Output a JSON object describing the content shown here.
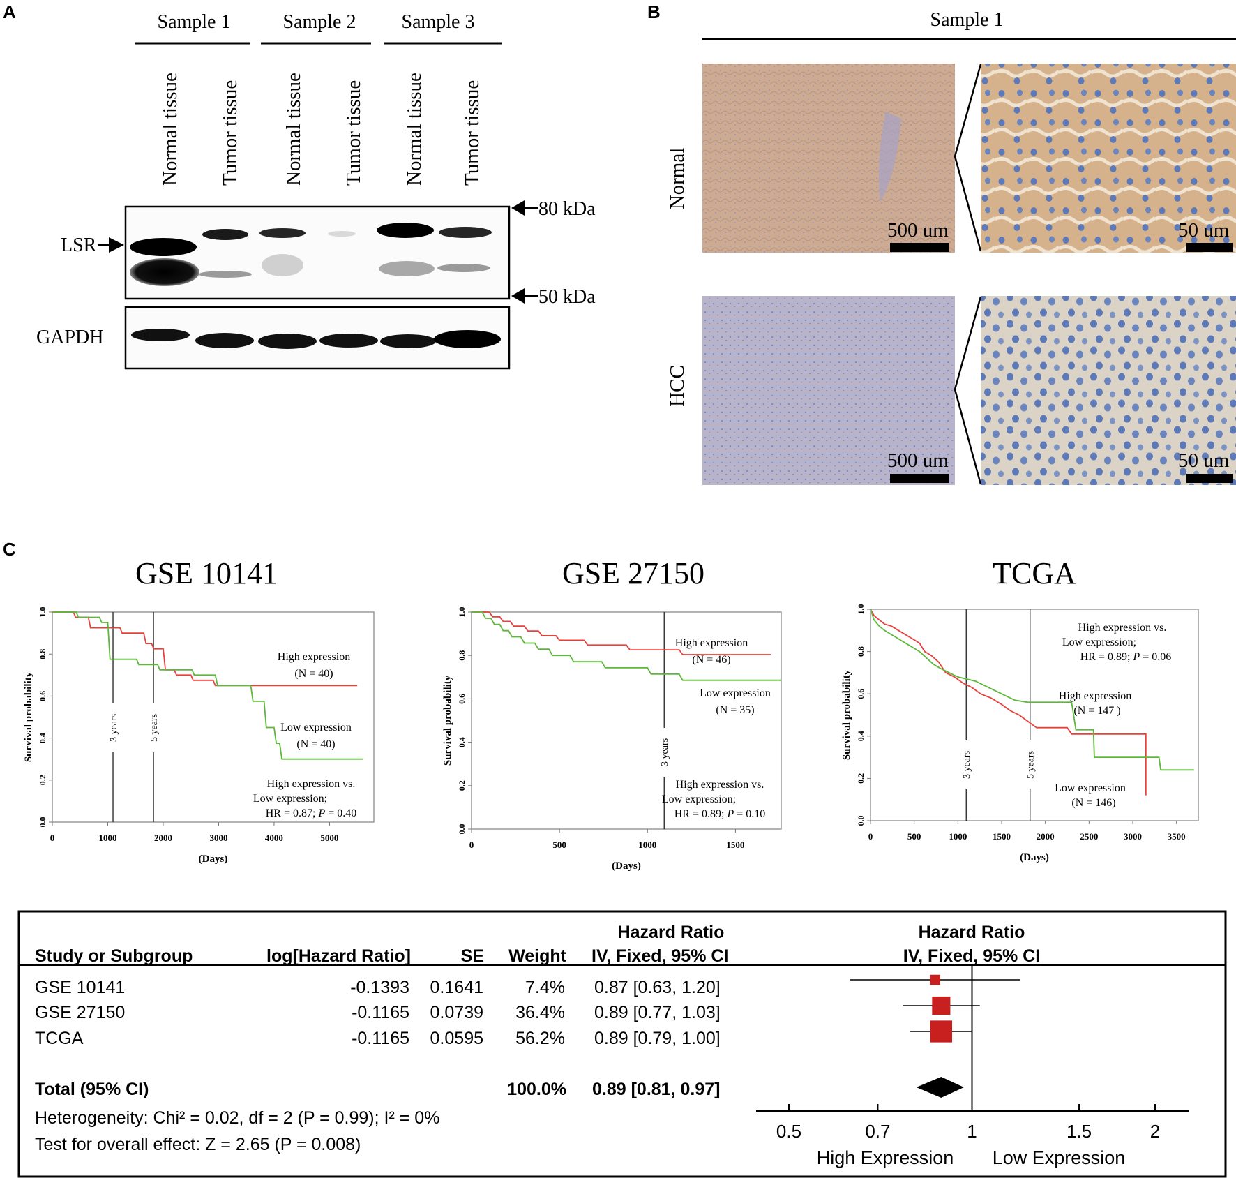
{
  "panel_labels": {
    "a": "A",
    "b": "B",
    "c": "C"
  },
  "panel_a": {
    "samples": [
      "Sample 1",
      "Sample 2",
      "Sample 3"
    ],
    "lanes": [
      "Normal tissue",
      "Tumor tissue",
      "Normal tissue",
      "Tumor tissue",
      "Normal tissue",
      "Tumor tissue"
    ],
    "row_labels": {
      "lsr": "LSR",
      "gapdh": "GAPDH"
    },
    "markers": {
      "upper": "80 kDa",
      "lower": "50 kDa"
    }
  },
  "panel_b": {
    "sample": "Sample 1",
    "rows": [
      "Normal",
      "HCC"
    ],
    "scalebars": {
      "low": "500 um",
      "high": "50 um"
    },
    "colors": {
      "normal_stain": "#cdab93",
      "normal_high": "#d7b48a",
      "hcc_stain": "#b6b3cd",
      "hcc_high": "#d9d3c6",
      "nuclei": "#5d79b8"
    }
  },
  "panel_c_common": {
    "ylabel": "Survival probability",
    "xlabel": "(Days)",
    "colors": {
      "high": "#e8413c",
      "low": "#5db83a"
    }
  },
  "chart_data": [
    {
      "type": "line",
      "title": "GSE 10141",
      "xlabel": "(Days)",
      "ylabel": "Survival probability",
      "xlim": [
        0,
        5800
      ],
      "ylim": [
        0,
        1.0
      ],
      "xticks": [
        0,
        1000,
        2000,
        3000,
        4000,
        5000
      ],
      "yticks": [
        0.0,
        0.2,
        0.4,
        0.6,
        0.8,
        1.0
      ],
      "ytick_labels": [
        "0.0",
        "0.2",
        "0.4",
        "0.6",
        "0.8",
        "1.0"
      ],
      "vlines": [
        {
          "x": 1095,
          "label": "3 years"
        },
        {
          "x": 1825,
          "label": "5 years"
        }
      ],
      "series": [
        {
          "name": "High expression",
          "n_label": "(N = 40)",
          "color": "#e8413c",
          "x": [
            0,
            380,
            420,
            650,
            690,
            1220,
            1260,
            1650,
            1690,
            1790,
            1830,
            2000,
            2040,
            2200,
            2240,
            2500,
            2540,
            2900,
            2940,
            5500
          ],
          "y": [
            1.0,
            1.0,
            0.975,
            0.975,
            0.925,
            0.925,
            0.9,
            0.9,
            0.85,
            0.85,
            0.825,
            0.825,
            0.725,
            0.725,
            0.7,
            0.7,
            0.675,
            0.675,
            0.65,
            0.65
          ]
        },
        {
          "name": "Low expression",
          "n_label": "(N = 40)",
          "color": "#5db83a",
          "x": [
            0,
            430,
            470,
            850,
            890,
            1000,
            1040,
            1520,
            1560,
            1900,
            1940,
            2520,
            2560,
            2940,
            2980,
            3580,
            3620,
            3820,
            3860,
            4000,
            4040,
            4100,
            4140,
            5600
          ],
          "y": [
            1.0,
            1.0,
            0.975,
            0.975,
            0.95,
            0.95,
            0.775,
            0.775,
            0.75,
            0.75,
            0.725,
            0.725,
            0.7,
            0.7,
            0.65,
            0.65,
            0.575,
            0.575,
            0.45,
            0.45,
            0.375,
            0.375,
            0.3,
            0.3
          ]
        }
      ],
      "legend": [
        {
          "text": "High expression",
          "sub": "(N = 40)"
        },
        {
          "text": "Low expression",
          "sub": "(N = 40)"
        }
      ],
      "stats": [
        "High expression vs.",
        "Low expression;",
        "HR = 0.87; ",
        "P",
        " = 0.40"
      ]
    },
    {
      "type": "line",
      "title": "GSE 27150",
      "xlabel": "(Days)",
      "ylabel": "Survival probability",
      "xlim": [
        0,
        1760
      ],
      "ylim": [
        0,
        1.0
      ],
      "xticks": [
        0,
        500,
        1000,
        1500
      ],
      "yticks": [
        0.0,
        0.2,
        0.4,
        0.6,
        0.8,
        1.0
      ],
      "ytick_labels": [
        "0.0",
        "0.2",
        "0.4",
        "0.6",
        "0.8",
        "1.0"
      ],
      "vlines": [
        {
          "x": 1095,
          "label": "3 years"
        }
      ],
      "series": [
        {
          "name": "High expression",
          "n_label": "(N = 46)",
          "color": "#e8413c",
          "x": [
            0,
            100,
            120,
            160,
            180,
            220,
            240,
            300,
            320,
            380,
            400,
            480,
            500,
            640,
            660,
            880,
            900,
            1180,
            1200,
            1700
          ],
          "y": [
            1.0,
            1.0,
            0.978,
            0.978,
            0.957,
            0.957,
            0.935,
            0.935,
            0.913,
            0.913,
            0.891,
            0.891,
            0.87,
            0.87,
            0.848,
            0.848,
            0.826,
            0.826,
            0.804,
            0.804
          ]
        },
        {
          "name": "Low expression",
          "n_label": "(N = 35)",
          "color": "#5db83a",
          "x": [
            0,
            60,
            80,
            110,
            130,
            160,
            180,
            210,
            230,
            280,
            300,
            360,
            380,
            440,
            460,
            560,
            580,
            740,
            760,
            1000,
            1020,
            1180,
            1200,
            1760
          ],
          "y": [
            1.0,
            1.0,
            0.971,
            0.971,
            0.943,
            0.943,
            0.914,
            0.914,
            0.886,
            0.886,
            0.857,
            0.857,
            0.829,
            0.829,
            0.8,
            0.8,
            0.771,
            0.771,
            0.743,
            0.743,
            0.714,
            0.714,
            0.686,
            0.686
          ]
        }
      ],
      "legend": [
        {
          "text": "High expression",
          "sub": "(N = 46)"
        },
        {
          "text": "Low expression",
          "sub": "(N = 35)"
        }
      ],
      "stats": [
        "High expression vs.",
        "Low expression;",
        "HR = 0.89; ",
        "P",
        " = 0.10"
      ]
    },
    {
      "type": "line",
      "title": "TCGA",
      "xlabel": "(Days)",
      "ylabel": "Survival probability",
      "xlim": [
        0,
        3750
      ],
      "ylim": [
        0,
        1.0
      ],
      "xticks": [
        0,
        500,
        1000,
        1500,
        2000,
        2500,
        3000,
        3500
      ],
      "yticks": [
        0.0,
        0.2,
        0.4,
        0.6,
        0.8,
        1.0
      ],
      "ytick_labels": [
        "0.0",
        "0.2",
        "0.4",
        "0.6",
        "0.8",
        "1.0"
      ],
      "vlines": [
        {
          "x": 1095,
          "label": "3 years"
        },
        {
          "x": 1825,
          "label": "5 years"
        }
      ],
      "series": [
        {
          "name": "High expression",
          "n_label": "(N = 147 )",
          "color": "#e8413c",
          "x": [
            0,
            40,
            100,
            160,
            240,
            320,
            400,
            480,
            560,
            620,
            700,
            780,
            860,
            960,
            1060,
            1160,
            1260,
            1380,
            1500,
            1600,
            1700,
            1800,
            1900,
            2250,
            2300,
            3150,
            3150
          ],
          "y": [
            1.0,
            0.97,
            0.95,
            0.93,
            0.92,
            0.9,
            0.88,
            0.86,
            0.84,
            0.8,
            0.78,
            0.75,
            0.7,
            0.68,
            0.65,
            0.63,
            0.6,
            0.58,
            0.55,
            0.52,
            0.5,
            0.47,
            0.44,
            0.44,
            0.41,
            0.41,
            0.12
          ]
        },
        {
          "name": "Low expression",
          "n_label": "(N = 146)",
          "color": "#5db83a",
          "x": [
            0,
            40,
            100,
            160,
            240,
            320,
            400,
            480,
            560,
            640,
            720,
            800,
            900,
            1000,
            1100,
            1200,
            1300,
            1500,
            1650,
            1800,
            2300,
            2350,
            2550,
            2560,
            3300,
            3320,
            3700
          ],
          "y": [
            1.0,
            0.95,
            0.92,
            0.9,
            0.88,
            0.86,
            0.84,
            0.82,
            0.8,
            0.77,
            0.74,
            0.72,
            0.7,
            0.68,
            0.67,
            0.66,
            0.64,
            0.6,
            0.57,
            0.56,
            0.56,
            0.43,
            0.43,
            0.3,
            0.3,
            0.24,
            0.24
          ]
        }
      ],
      "legend": [
        {
          "text": "High expression",
          "sub": "(N = 147 )"
        },
        {
          "text": "Low expression",
          "sub": "(N = 146)"
        }
      ],
      "stats": [
        "High expression vs.",
        "Low expression;",
        "HR = 0.89; ",
        "P",
        " = 0.06"
      ]
    },
    {
      "type": "table",
      "subtype": "forest",
      "headers": {
        "group_top": "Hazard Ratio",
        "plot_top": "Hazard Ratio",
        "study": "Study or Subgroup",
        "loghr": "log[Hazard Ratio]",
        "se": "SE",
        "weight": "Weight",
        "ci": "IV, Fixed, 95% CI",
        "plot_ci": "IV, Fixed, 95% CI"
      },
      "rows": [
        {
          "study": "GSE 10141",
          "loghr": "-0.1393",
          "se": "0.1641",
          "weight": "7.4%",
          "ci": "0.87 [0.63, 1.20]",
          "hr": 0.87,
          "lo": 0.63,
          "hi": 1.2,
          "w": 7.4
        },
        {
          "study": "GSE 27150",
          "loghr": "-0.1165",
          "se": "0.0739",
          "weight": "36.4%",
          "ci": "0.89 [0.77, 1.03]",
          "hr": 0.89,
          "lo": 0.77,
          "hi": 1.03,
          "w": 36.4
        },
        {
          "study": "TCGA",
          "loghr": "-0.1165",
          "se": "0.0595",
          "weight": "56.2%",
          "ci": "0.89 [0.79, 1.00]",
          "hr": 0.89,
          "lo": 0.79,
          "hi": 1.0,
          "w": 56.2
        }
      ],
      "total": {
        "label": "Total (95% CI)",
        "weight": "100.0%",
        "ci": "0.89 [0.81, 0.97]",
        "hr": 0.89,
        "lo": 0.81,
        "hi": 0.97
      },
      "heterogeneity": "Heterogeneity: Chi² = 0.02, df = 2 (P = 0.99); I² = 0%",
      "overall": "Test for overall effect: Z = 2.65 (P = 0.008)",
      "axis_ticks": [
        0.5,
        0.7,
        1,
        1.5,
        2
      ],
      "axis_tick_labels": [
        "0.5",
        "0.7",
        "1",
        "1.5",
        "2"
      ],
      "axis_scale": "log",
      "favors_left": "High Expression",
      "favors_right": "Low Expression",
      "marker_color": "#c8201e"
    }
  ]
}
